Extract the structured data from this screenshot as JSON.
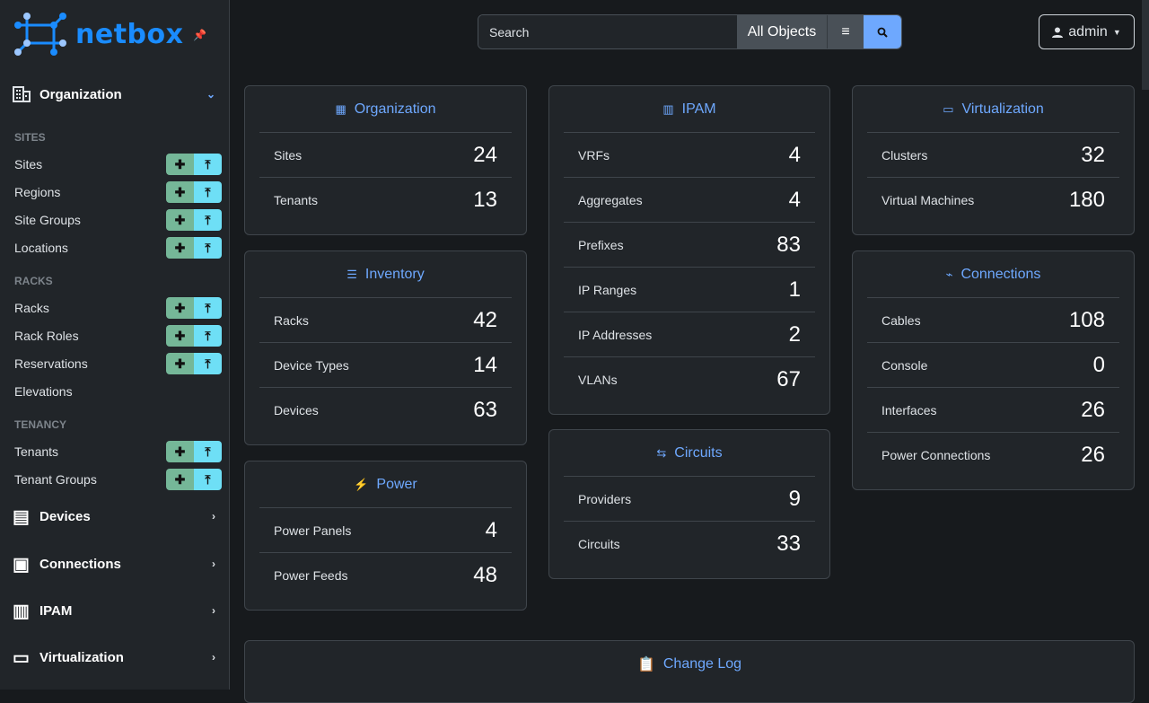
{
  "brand": {
    "name": "netbox",
    "accent": "#1a8cff"
  },
  "sidebar": {
    "org": {
      "label": "Organization",
      "icon": "domain-icon"
    },
    "sections": [
      {
        "title": "SITES",
        "items": [
          {
            "label": "Sites",
            "actions": true
          },
          {
            "label": "Regions",
            "actions": true
          },
          {
            "label": "Site Groups",
            "actions": true
          },
          {
            "label": "Locations",
            "actions": true
          }
        ]
      },
      {
        "title": "RACKS",
        "items": [
          {
            "label": "Racks",
            "actions": true
          },
          {
            "label": "Rack Roles",
            "actions": true
          },
          {
            "label": "Reservations",
            "actions": true
          },
          {
            "label": "Elevations",
            "actions": false
          }
        ]
      },
      {
        "title": "TENANCY",
        "items": [
          {
            "label": "Tenants",
            "actions": true
          },
          {
            "label": "Tenant Groups",
            "actions": true
          }
        ]
      }
    ],
    "menus": [
      {
        "label": "Devices",
        "icon": "server-icon"
      },
      {
        "label": "Connections",
        "icon": "ethernet-icon"
      },
      {
        "label": "IPAM",
        "icon": "counter-icon"
      },
      {
        "label": "Virtualization",
        "icon": "monitor-icon"
      }
    ]
  },
  "search": {
    "placeholder": "Search",
    "scope": "All Objects"
  },
  "user": {
    "label": "admin"
  },
  "cards": [
    {
      "title": "Organization",
      "icon": "domain-icon",
      "rows": [
        [
          "Sites",
          "24"
        ],
        [
          "Tenants",
          "13"
        ]
      ]
    },
    {
      "title": "Inventory",
      "icon": "server-icon",
      "rows": [
        [
          "Racks",
          "42"
        ],
        [
          "Device Types",
          "14"
        ],
        [
          "Devices",
          "63"
        ]
      ]
    },
    {
      "title": "Power",
      "icon": "flash-icon",
      "rows": [
        [
          "Power Panels",
          "4"
        ],
        [
          "Power Feeds",
          "48"
        ]
      ]
    },
    {
      "title": "IPAM",
      "icon": "counter-icon",
      "rows": [
        [
          "VRFs",
          "4"
        ],
        [
          "Aggregates",
          "4"
        ],
        [
          "Prefixes",
          "83"
        ],
        [
          "IP Ranges",
          "1"
        ],
        [
          "IP Addresses",
          "2"
        ],
        [
          "VLANs",
          "67"
        ]
      ]
    },
    {
      "title": "Circuits",
      "icon": "transit-icon",
      "rows": [
        [
          "Providers",
          "9"
        ],
        [
          "Circuits",
          "33"
        ]
      ]
    },
    {
      "title": "Virtualization",
      "icon": "monitor-icon",
      "rows": [
        [
          "Clusters",
          "32"
        ],
        [
          "Virtual Machines",
          "180"
        ]
      ]
    },
    {
      "title": "Connections",
      "icon": "cable-icon",
      "rows": [
        [
          "Cables",
          "108"
        ],
        [
          "Console",
          "0"
        ],
        [
          "Interfaces",
          "26"
        ],
        [
          "Power Connections",
          "26"
        ]
      ]
    }
  ],
  "changelog": {
    "title": "Change Log",
    "icon": "clipboard-clock-icon"
  }
}
